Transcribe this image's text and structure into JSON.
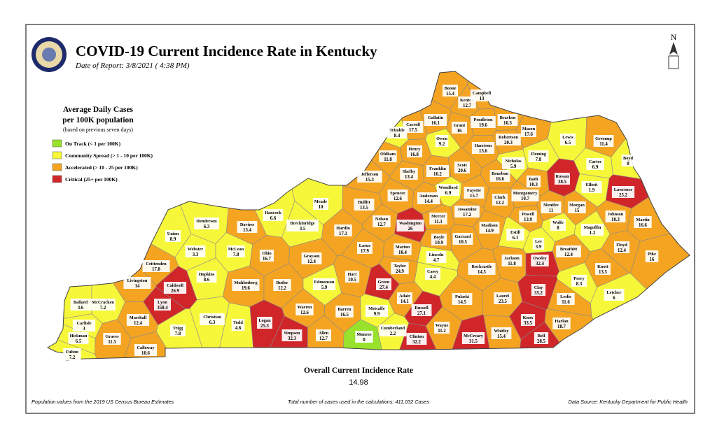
{
  "header": {
    "title": "COVID-19 Current Incidence Rate in Kentucky",
    "date": "Date of Report: 3/8/2021 ( 4:38 PM)"
  },
  "north": "N",
  "legend": {
    "title_lines": [
      "Average Daily Cases",
      "per 100K population"
    ],
    "note": "(based on previous seven days)",
    "items": [
      {
        "label": "On Track (< 1 per 100K)",
        "color": "#99e22c"
      },
      {
        "label": "Community Spread (> 1 - 10 per 100K)",
        "color": "#f7f73a"
      },
      {
        "label": "Accelerated (> 10 - 25 per 100K)",
        "color": "#f4a420"
      },
      {
        "label": "Critical (25+ per 100K)",
        "color": "#d0262a"
      }
    ]
  },
  "counties": [
    {
      "name": "Boone",
      "rate": 15.4,
      "color": "#f4a420"
    },
    {
      "name": "Kenton",
      "rate": 12.7,
      "color": "#f4a420"
    },
    {
      "name": "Campbell",
      "rate": 13,
      "color": "#f4a420"
    },
    {
      "name": "Gallatin",
      "rate": 16.1,
      "color": "#f4a420"
    },
    {
      "name": "Carroll",
      "rate": 17.5,
      "color": "#f4a420"
    },
    {
      "name": "Trimble",
      "rate": 8.4,
      "color": "#f7f73a"
    },
    {
      "name": "Grant",
      "rate": 16,
      "color": "#f4a420"
    },
    {
      "name": "Pendleton",
      "rate": 19.6,
      "color": "#f4a420"
    },
    {
      "name": "Bracken",
      "rate": 10.3,
      "color": "#f4a420"
    },
    {
      "name": "Mason",
      "rate": 17.6,
      "color": "#f4a420"
    },
    {
      "name": "Robertson",
      "rate": 20.3,
      "color": "#f4a420"
    },
    {
      "name": "Owen",
      "rate": 9.2,
      "color": "#f7f73a"
    },
    {
      "name": "Harrison",
      "rate": 13.6,
      "color": "#f4a420"
    },
    {
      "name": "Lewis",
      "rate": 6.5,
      "color": "#f7f73a"
    },
    {
      "name": "Greenup",
      "rate": 11.4,
      "color": "#f4a420"
    },
    {
      "name": "Fleming",
      "rate": 7.8,
      "color": "#f7f73a"
    },
    {
      "name": "Boyd",
      "rate": 8,
      "color": "#f7f73a"
    },
    {
      "name": "Oldham",
      "rate": 11.8,
      "color": "#f4a420"
    },
    {
      "name": "Henry",
      "rate": 16.8,
      "color": "#f4a420"
    },
    {
      "name": "Carter",
      "rate": 6.9,
      "color": "#f7f73a"
    },
    {
      "name": "Nicholas",
      "rate": 5.9,
      "color": "#f7f73a"
    },
    {
      "name": "Scott",
      "rate": 20.6,
      "color": "#f4a420"
    },
    {
      "name": "Franklin",
      "rate": 16.2,
      "color": "#f4a420"
    },
    {
      "name": "Shelby",
      "rate": 13.4,
      "color": "#f4a420"
    },
    {
      "name": "Bourbon",
      "rate": 16.6,
      "color": "#f4a420"
    },
    {
      "name": "Bath",
      "rate": 10.3,
      "color": "#f4a420"
    },
    {
      "name": "Rowan",
      "rate": 38.5,
      "color": "#d0262a"
    },
    {
      "name": "Elliott",
      "rate": 1.9,
      "color": "#f7f73a"
    },
    {
      "name": "Lawrence",
      "rate": 25.2,
      "color": "#d0262a"
    },
    {
      "name": "Jefferson",
      "rate": 15.3,
      "color": "#f4a420"
    },
    {
      "name": "Woodford",
      "rate": 6.9,
      "color": "#f7f73a"
    },
    {
      "name": "Fayette",
      "rate": 15.7,
      "color": "#f4a420"
    },
    {
      "name": "Clark",
      "rate": 12.2,
      "color": "#f4a420"
    },
    {
      "name": "Montgomery",
      "rate": 10.7,
      "color": "#f4a420"
    },
    {
      "name": "Morgan",
      "rate": 15,
      "color": "#f4a420"
    },
    {
      "name": "Menifee",
      "rate": 11,
      "color": "#f4a420"
    },
    {
      "name": "Spencer",
      "rate": 12.6,
      "color": "#f4a420"
    },
    {
      "name": "Anderson",
      "rate": 14.4,
      "color": "#f4a420"
    },
    {
      "name": "Bullitt",
      "rate": 13.5,
      "color": "#f4a420"
    },
    {
      "name": "Jessamine",
      "rate": 17.2,
      "color": "#f4a420"
    },
    {
      "name": "Johnson",
      "rate": 10.3,
      "color": "#f4a420"
    },
    {
      "name": "Powell",
      "rate": 13.9,
      "color": "#f4a420"
    },
    {
      "name": "Mercer",
      "rate": 11.1,
      "color": "#f4a420"
    },
    {
      "name": "Nelson",
      "rate": 12.7,
      "color": "#f4a420"
    },
    {
      "name": "Washington",
      "rate": 26,
      "color": "#d0262a"
    },
    {
      "name": "Madison",
      "rate": 14.9,
      "color": "#f4a420"
    },
    {
      "name": "Estill",
      "rate": 6.1,
      "color": "#f7f73a"
    },
    {
      "name": "Wolfe",
      "rate": 8,
      "color": "#f7f73a"
    },
    {
      "name": "Martin",
      "rate": 16.6,
      "color": "#f4a420"
    },
    {
      "name": "Magoffin",
      "rate": 1.2,
      "color": "#f7f73a"
    },
    {
      "name": "Garrard",
      "rate": 10.5,
      "color": "#f4a420"
    },
    {
      "name": "Boyle",
      "rate": 10.9,
      "color": "#f4a420"
    },
    {
      "name": "Lee",
      "rate": 3.9,
      "color": "#f7f73a"
    },
    {
      "name": "Hardin",
      "rate": 17.1,
      "color": "#f4a420"
    },
    {
      "name": "Meade",
      "rate": 10,
      "color": "#f7f73a"
    },
    {
      "name": "Breckinridge",
      "rate": 3.5,
      "color": "#f7f73a"
    },
    {
      "name": "Hancock",
      "rate": 6.6,
      "color": "#f7f73a"
    },
    {
      "name": "Daviess",
      "rate": 13.4,
      "color": "#f4a420"
    },
    {
      "name": "Henderson",
      "rate": 6.3,
      "color": "#f7f73a"
    },
    {
      "name": "Union",
      "rate": 8.9,
      "color": "#f7f73a"
    },
    {
      "name": "Webster",
      "rate": 3.3,
      "color": "#f7f73a"
    },
    {
      "name": "McLean",
      "rate": 7.8,
      "color": "#f7f73a"
    },
    {
      "name": "Larue",
      "rate": 17.9,
      "color": "#f4a420"
    },
    {
      "name": "Marion",
      "rate": 10.4,
      "color": "#f4a420"
    },
    {
      "name": "Lincoln",
      "rate": 4.7,
      "color": "#f7f73a"
    },
    {
      "name": "Breathitt",
      "rate": 12.4,
      "color": "#f4a420"
    },
    {
      "name": "Floyd",
      "rate": 12.4,
      "color": "#f4a420"
    },
    {
      "name": "Pike",
      "rate": 16,
      "color": "#f4a420"
    },
    {
      "name": "Ohio",
      "rate": 16.7,
      "color": "#f4a420"
    },
    {
      "name": "Grayson",
      "rate": 12.4,
      "color": "#f4a420"
    },
    {
      "name": "Jackson",
      "rate": 11.8,
      "color": "#f4a420"
    },
    {
      "name": "Owsley",
      "rate": 32.4,
      "color": "#d0262a"
    },
    {
      "name": "Rockcastle",
      "rate": 14.5,
      "color": "#f4a420"
    },
    {
      "name": "Knott",
      "rate": 13.5,
      "color": "#f4a420"
    },
    {
      "name": "Taylor",
      "rate": 24.9,
      "color": "#f4a420"
    },
    {
      "name": "Crittenden",
      "rate": 17.8,
      "color": "#f4a420"
    },
    {
      "name": "Hopkins",
      "rate": 8.6,
      "color": "#f7f73a"
    },
    {
      "name": "Muhlenberg",
      "rate": 19.6,
      "color": "#f4a420"
    },
    {
      "name": "Butler",
      "rate": 12.2,
      "color": "#f4a420"
    },
    {
      "name": "Hart",
      "rate": 10.5,
      "color": "#f4a420"
    },
    {
      "name": "Casey",
      "rate": 4.4,
      "color": "#f7f73a"
    },
    {
      "name": "Perry",
      "rate": 8.3,
      "color": "#f7f73a"
    },
    {
      "name": "Green",
      "rate": 27.4,
      "color": "#d0262a"
    },
    {
      "name": "Edmonson",
      "rate": 5.9,
      "color": "#f7f73a"
    },
    {
      "name": "Livingston",
      "rate": 14,
      "color": "#f4a420"
    },
    {
      "name": "Caldwell",
      "rate": 26.9,
      "color": "#d0262a"
    },
    {
      "name": "Clay",
      "rate": 35.2,
      "color": "#d0262a"
    },
    {
      "name": "Letcher",
      "rate": 6,
      "color": "#f7f73a"
    },
    {
      "name": "Leslie",
      "rate": 11.6,
      "color": "#f4a420"
    },
    {
      "name": "Laurel",
      "rate": 23.5,
      "color": "#f4a420"
    },
    {
      "name": "Pulaski",
      "rate": 14.5,
      "color": "#f4a420"
    },
    {
      "name": "Adair",
      "rate": 14.1,
      "color": "#f4a420"
    },
    {
      "name": "Ballard",
      "rate": 3.6,
      "color": "#f7f73a"
    },
    {
      "name": "McCracken",
      "rate": 7.2,
      "color": "#f7f73a"
    },
    {
      "name": "Lyon",
      "rate": 358.4,
      "color": "#d0262a"
    },
    {
      "name": "Marshall",
      "rate": 12.4,
      "color": "#f4a420"
    },
    {
      "name": "Christian",
      "rate": 6.3,
      "color": "#f7f73a"
    },
    {
      "name": "Todd",
      "rate": 4.6,
      "color": "#f7f73a"
    },
    {
      "name": "Warren",
      "rate": 12.6,
      "color": "#f4a420"
    },
    {
      "name": "Barren",
      "rate": 16.5,
      "color": "#f4a420"
    },
    {
      "name": "Metcalfe",
      "rate": 9.9,
      "color": "#f7f73a"
    },
    {
      "name": "Russell",
      "rate": 27.1,
      "color": "#d0262a"
    },
    {
      "name": "Knox",
      "rate": 33.5,
      "color": "#d0262a"
    },
    {
      "name": "Bell",
      "rate": 28.5,
      "color": "#d0262a"
    },
    {
      "name": "Harlan",
      "rate": 18.7,
      "color": "#f4a420"
    },
    {
      "name": "Carlisle",
      "rate": 3,
      "color": "#f7f73a"
    },
    {
      "name": "Trigg",
      "rate": 7.8,
      "color": "#f7f73a"
    },
    {
      "name": "Logan",
      "rate": 25.3,
      "color": "#d0262a"
    },
    {
      "name": "Simpson",
      "rate": 32.3,
      "color": "#d0262a"
    },
    {
      "name": "Allen",
      "rate": 12.7,
      "color": "#f4a420"
    },
    {
      "name": "Cumberland",
      "rate": 2.2,
      "color": "#f7f73a"
    },
    {
      "name": "Monroe",
      "rate": 0,
      "color": "#99e22c"
    },
    {
      "name": "Clinton",
      "rate": 32.2,
      "color": "#d0262a"
    },
    {
      "name": "Wayne",
      "rate": 11.2,
      "color": "#f4a420"
    },
    {
      "name": "McCreary",
      "rate": 31.5,
      "color": "#d0262a"
    },
    {
      "name": "Whitley",
      "rate": 15.4,
      "color": "#f4a420"
    },
    {
      "name": "Graves",
      "rate": 11.5,
      "color": "#f4a420"
    },
    {
      "name": "Hickman",
      "rate": 6.5,
      "color": "#f7f73a"
    },
    {
      "name": "Calloway",
      "rate": 10.6,
      "color": "#f4a420"
    },
    {
      "name": "Fulton",
      "rate": 7.2,
      "color": "#f7f73a"
    }
  ],
  "overall": {
    "label": "Overall Current Incidence Rate",
    "value": 14.98
  },
  "footer": {
    "left": "Population values from the 2019 US Census Bureau Estimates",
    "center": "Total number of cases used in the calculations: 411,032 Cases",
    "right": "Data Source: Kentucky Department for Public Health"
  }
}
